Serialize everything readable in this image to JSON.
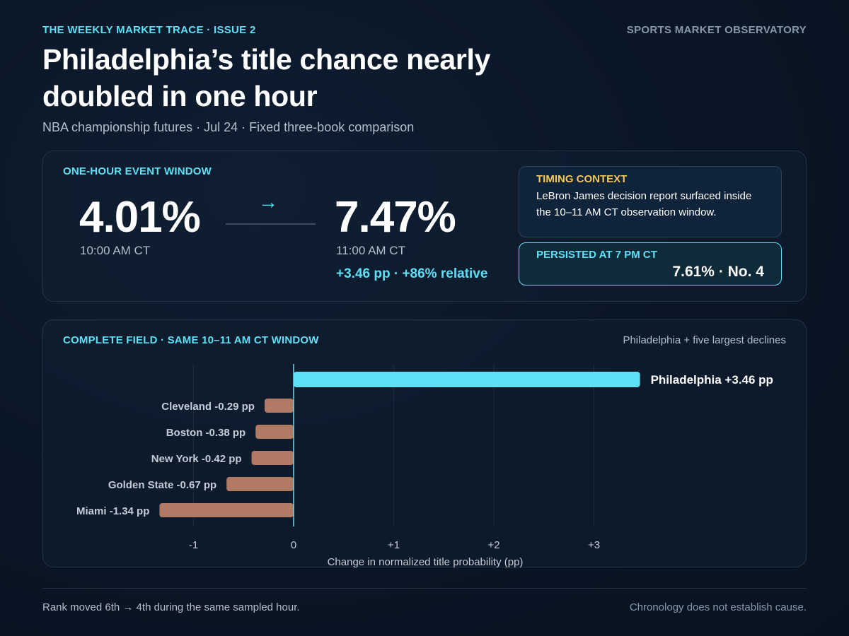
{
  "header": {
    "kicker": "THE WEEKLY MARKET TRACE · ISSUE 2",
    "brand": "SPORTS MARKET OBSERVATORY",
    "title": "Philadelphia’s title chance nearly doubled in one hour",
    "subtitle": "NBA championship futures · Jul 24 · Fixed three-book comparison"
  },
  "event_window": {
    "label": "ONE-HOUR EVENT WINDOW",
    "before_value": "4.01%",
    "before_time": "10:00 AM CT",
    "arrow": "→",
    "after_value": "7.47%",
    "after_time": "11:00 AM CT",
    "change": "+3.46 pp · +86% relative"
  },
  "timing_context": {
    "label": "TIMING CONTEXT",
    "text": "LeBron James decision report surfaced inside the 10–11 AM CT observation window."
  },
  "persisted": {
    "label": "PERSISTED AT 7 PM CT",
    "value": "7.61% · No. 4"
  },
  "field": {
    "label": "COMPLETE FIELD · SAME 10–11 AM CT WINDOW",
    "note": "Philadelphia + five largest declines"
  },
  "chart_data": {
    "type": "bar",
    "orientation": "horizontal",
    "categories": [
      "Philadelphia",
      "Cleveland",
      "Boston",
      "New York",
      "Golden State",
      "Miami"
    ],
    "values": [
      3.46,
      -0.29,
      -0.38,
      -0.42,
      -0.67,
      -1.34
    ],
    "data_labels": [
      "Philadelphia +3.46 pp",
      "Cleveland -0.29 pp",
      "Boston -0.38 pp",
      "New York -0.42 pp",
      "Golden State -0.67 pp",
      "Miami -1.34 pp"
    ],
    "xlabel": "Change in normalized title probability (pp)",
    "xlim": [
      -1,
      3
    ],
    "xticks": [
      -1,
      0,
      1,
      2,
      3
    ],
    "xtick_labels": [
      "-1",
      "0",
      "+1",
      "+2",
      "+3"
    ],
    "grid": true,
    "colors": {
      "positive": "#5ee0f7",
      "negative": "#b07a65"
    }
  },
  "footer": {
    "left": "Rank moved 6th → 4th during the same sampled hour.",
    "right": "Chronology does not establish cause."
  }
}
